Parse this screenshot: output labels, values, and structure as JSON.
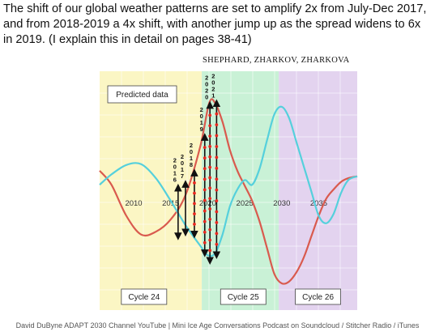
{
  "caption": "The shift of our global weather patterns are set to amplify 2x from July-Dec 2017, and from 2018-2019 a 4x shift, with another jump up as the spread widens to 6x in 2019. (I explain this in detail on pages 38-41)",
  "authors": "SHEPHARD, ZHARKOV, ZHARKOVA",
  "footer": "David DuByne ADAPT 2030 Channel YouTube | Mini Ice Age Conversations Podcast on Soundcloud / Stitcher Radio / iTunes",
  "colors": {
    "cycle24_band": "#fbf6c4",
    "cycle25_band": "#c9f1d6",
    "cycle26_band": "#e3d3ef",
    "red_curve": "#d95a4e",
    "blue_curve": "#55d0dc",
    "arrows": "#111111",
    "markers": "#e8271f"
  },
  "chart_data": {
    "type": "line",
    "box_label": "Predicted data",
    "x_ticks": [
      "2010",
      "2015",
      "2020",
      "2025",
      "2030",
      "2035"
    ],
    "x_tick_values": [
      2010,
      2015,
      2020,
      2025,
      2030,
      2035
    ],
    "xlim": [
      2005.4,
      2040.2
    ],
    "ylim": [
      -1,
      1
    ],
    "grid": true,
    "cycles": [
      {
        "label": "Cycle 24",
        "start": 2005.4,
        "end": 2019.2
      },
      {
        "label": "Cycle 25",
        "start": 2019.2,
        "end": 2029.6
      },
      {
        "label": "Cycle 26",
        "start": 2029.6,
        "end": 2040.2
      }
    ],
    "series": [
      {
        "color_key": "red_curve",
        "x": [
          2005.4,
          2007,
          2009,
          2011,
          2013,
          2015,
          2017,
          2019,
          2020.2,
          2021,
          2022,
          2023,
          2024,
          2025,
          2026,
          2027,
          2028,
          2029,
          2030,
          2031,
          2032,
          2033,
          2034,
          2035,
          2036,
          2037,
          2038,
          2039,
          2040.2
        ],
        "values": [
          0.2,
          0.05,
          -0.28,
          -0.48,
          -0.45,
          -0.32,
          -0.06,
          0.46,
          0.92,
          0.92,
          0.72,
          0.42,
          0.2,
          0.04,
          -0.12,
          -0.34,
          -0.62,
          -0.9,
          -1.0,
          -0.98,
          -0.88,
          -0.72,
          -0.5,
          -0.28,
          -0.1,
          0.0,
          0.08,
          0.12,
          0.14
        ]
      },
      {
        "color_key": "blue_curve",
        "x": [
          2005.4,
          2007,
          2009,
          2011,
          2013,
          2015,
          2017,
          2019,
          2020,
          2021,
          2022,
          2023,
          2024,
          2025,
          2026,
          2027,
          2028,
          2029,
          2030,
          2031,
          2032,
          2033,
          2034,
          2035,
          2036,
          2037,
          2038,
          2039,
          2040.2
        ],
        "values": [
          0.05,
          0.16,
          0.26,
          0.27,
          0.12,
          -0.12,
          -0.38,
          -0.6,
          -0.7,
          -0.68,
          -0.48,
          -0.18,
          0.0,
          0.1,
          0.05,
          0.22,
          0.52,
          0.8,
          0.88,
          0.76,
          0.5,
          0.24,
          -0.02,
          -0.28,
          -0.36,
          -0.26,
          -0.04,
          0.1,
          0.14
        ]
      }
    ],
    "annotations": [
      {
        "label": "2016",
        "x": 2016.0,
        "y_top": 0.02,
        "y_bottom": -0.5
      },
      {
        "label": "2017",
        "x": 2017.0,
        "y_top": 0.06,
        "y_bottom": -0.46
      },
      {
        "label": "2018",
        "x": 2018.2,
        "y_top": 0.18,
        "y_bottom": -0.48
      },
      {
        "label": "2019",
        "x": 2019.6,
        "y_top": 0.56,
        "y_bottom": -0.68
      },
      {
        "label": "2020",
        "x": 2020.3,
        "y_top": 0.9,
        "y_bottom": -0.76
      },
      {
        "label": "2021",
        "x": 2021.2,
        "y_top": 0.92,
        "y_bottom": -0.7
      }
    ]
  }
}
